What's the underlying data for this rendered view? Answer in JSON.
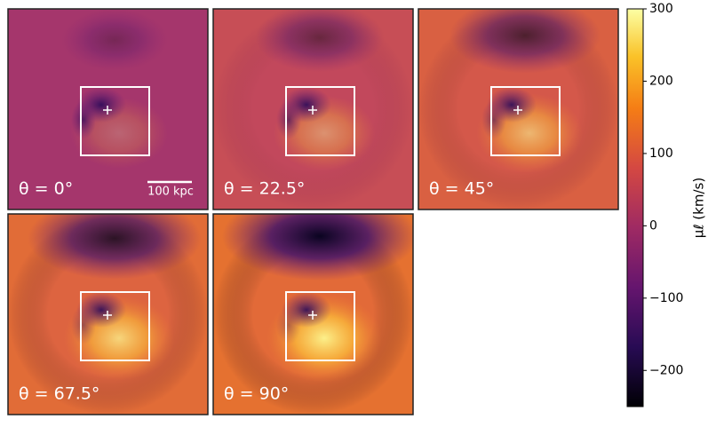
{
  "chart_data": {
    "type": "image-grid",
    "panels": [
      "θ = 0°",
      "θ = 22.5°",
      "θ = 45°",
      "θ = 67.5°",
      "θ = 90°"
    ],
    "scale_bar_label": "100 kpc",
    "ylabel": "μℓ (km/s)",
    "ylim": [
      -250,
      300
    ],
    "yticks": [
      {
        "value": -200,
        "label": "−200"
      },
      {
        "value": -100,
        "label": "−100"
      },
      0,
      100,
      200,
      300
    ]
  }
}
